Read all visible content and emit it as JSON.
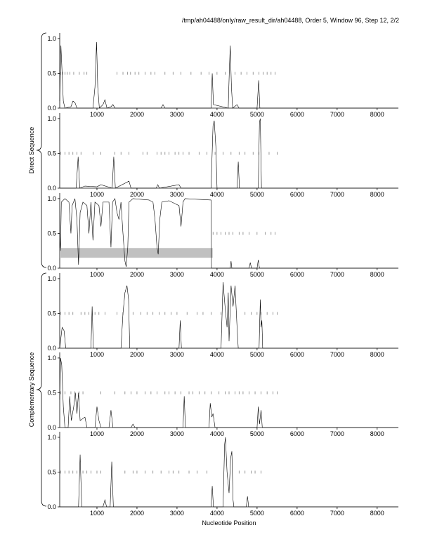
{
  "title": "/tmp/ah04488/only/raw_result_dir/ah04488, Order 5, Window 96, Step 12, 2/2",
  "y_group_labels": [
    "Direct Sequence",
    "Complementary Sequence"
  ],
  "x_label": "Nucleotide Position",
  "chart_data": [
    {
      "type": "line",
      "color": "#000000",
      "xlim": [
        70,
        8530
      ],
      "ylim": [
        0,
        1.08
      ],
      "xticks": [
        1000,
        2000,
        3000,
        4000,
        5000,
        6000,
        7000,
        8000
      ],
      "yticks": [
        {
          "value": 0,
          "label": "0.0"
        },
        {
          "value": 0.5,
          "label": "0.5"
        },
        {
          "value": 1,
          "label": "1.0"
        }
      ],
      "x": [
        70,
        100,
        130,
        160,
        200,
        350,
        400,
        450,
        500,
        900,
        950,
        990,
        1020,
        1060,
        1150,
        1200,
        1250,
        1350,
        1400,
        1450,
        2600,
        2650,
        2700,
        3850,
        3880,
        3910,
        4280,
        4310,
        4330,
        4360,
        4390,
        4500,
        4550,
        5000,
        5040,
        5070,
        8530
      ],
      "values": [
        0.1,
        0.9,
        0.5,
        0.1,
        0,
        0.02,
        0.1,
        0.08,
        0,
        0,
        0.3,
        0.95,
        0.3,
        0,
        0.05,
        0.12,
        0,
        0.02,
        0.05,
        0,
        0,
        0.05,
        0,
        0,
        0.5,
        0.05,
        0,
        0.6,
        0.9,
        0.3,
        0,
        0.05,
        0,
        0,
        0.4,
        0,
        0
      ],
      "marker_level": 0.5,
      "markers": [
        90,
        140,
        200,
        260,
        320,
        420,
        560,
        680,
        750,
        1500,
        1650,
        1760,
        1840,
        1950,
        2050,
        2200,
        2350,
        2450,
        2700,
        2900,
        3100,
        3350,
        3600,
        3800,
        4000,
        4200,
        4450,
        4600,
        4750,
        4900,
        5050,
        5150,
        5250,
        5350,
        5450
      ]
    },
    {
      "type": "line",
      "color": "#000000",
      "xlim": [
        70,
        8530
      ],
      "ylim": [
        0,
        1.08
      ],
      "xticks": [
        1000,
        2000,
        3000,
        4000,
        5000,
        6000,
        7000,
        8000
      ],
      "yticks": [
        {
          "value": 0,
          "label": "0.0"
        },
        {
          "value": 0.5,
          "label": "0.5"
        },
        {
          "value": 1,
          "label": "1.0"
        }
      ],
      "x": [
        70,
        480,
        530,
        570,
        700,
        1000,
        1100,
        1380,
        1420,
        1460,
        1800,
        1850,
        2480,
        2520,
        2560,
        3050,
        3100,
        3850,
        3900,
        3930,
        3970,
        4000,
        4500,
        4530,
        4560,
        5030,
        5060,
        5080,
        5110,
        8530
      ],
      "values": [
        0,
        0,
        0.45,
        0,
        0.03,
        0.02,
        0.05,
        0,
        0.45,
        0,
        0.1,
        0,
        0,
        0.05,
        0,
        0.05,
        0,
        0,
        0.9,
        0.97,
        0.6,
        0,
        0,
        0.38,
        0,
        0,
        0.95,
        1.0,
        0,
        0
      ],
      "marker_level": 0.5,
      "markers": [
        100,
        200,
        300,
        400,
        500,
        600,
        900,
        1100,
        1450,
        1600,
        1800,
        2150,
        2250,
        2500,
        2600,
        2700,
        2800,
        2950,
        3050,
        3150,
        3300,
        3550,
        3750,
        3950,
        4150,
        4350,
        4550,
        4700,
        4900,
        5050,
        5300,
        5500
      ]
    },
    {
      "type": "line",
      "color": "#000000",
      "xlim": [
        70,
        8530
      ],
      "ylim": [
        0,
        1.08
      ],
      "xticks": [
        1000,
        2000,
        3000,
        4000,
        5000,
        6000,
        7000,
        8000
      ],
      "yticks": [
        {
          "value": 0,
          "label": "0.0"
        },
        {
          "value": 0.5,
          "label": "0.5"
        },
        {
          "value": 1,
          "label": "1.0"
        }
      ],
      "x": [
        70,
        90,
        110,
        200,
        300,
        350,
        380,
        450,
        500,
        540,
        580,
        650,
        750,
        800,
        850,
        900,
        950,
        1050,
        1100,
        1150,
        1300,
        1350,
        1390,
        1450,
        1500,
        1550,
        1600,
        1650,
        1700,
        1730,
        1770,
        1800,
        1900,
        2300,
        2400,
        2450,
        2500,
        2530,
        2570,
        2620,
        2800,
        3050,
        3100,
        3150,
        3200,
        3850,
        3860,
        4330,
        4350,
        4370,
        4800,
        4830,
        4860,
        5000,
        5030,
        5060,
        8530
      ],
      "values": [
        0.5,
        0.25,
        0.95,
        1.0,
        0.95,
        0.5,
        0.9,
        1.0,
        0.7,
        0.05,
        0.8,
        0.95,
        0.9,
        0.5,
        0.95,
        0.4,
        0.95,
        0.9,
        0.6,
        0.95,
        0.95,
        0.3,
        0.95,
        1.0,
        0.8,
        0.7,
        0.95,
        0.5,
        0.1,
        0.02,
        0.3,
        0.95,
        1.0,
        0.98,
        0.95,
        0.7,
        0.3,
        0.2,
        0.7,
        0.95,
        0.97,
        0.9,
        0.6,
        0.95,
        1.0,
        0.98,
        0,
        0,
        0.1,
        0,
        0,
        0.08,
        0,
        0,
        0.12,
        0,
        0
      ],
      "band": {
        "x": [
          70,
          3890
        ],
        "y": [
          0.15,
          0.29
        ],
        "color": "#c0c0c0"
      },
      "marker_level": 0.5,
      "markers": [
        3900,
        4000,
        4100,
        4200,
        4300,
        4400,
        4550,
        4650,
        4800,
        5000,
        5200,
        5350,
        5450
      ]
    },
    {
      "type": "line",
      "color": "#000000",
      "xlim": [
        70,
        8530
      ],
      "ylim": [
        0,
        1.08
      ],
      "xticks": [
        1000,
        2000,
        3000,
        4000,
        5000,
        6000,
        7000,
        8000
      ],
      "yticks": [
        {
          "value": 0,
          "label": "0.0"
        },
        {
          "value": 0.5,
          "label": "0.5"
        },
        {
          "value": 1,
          "label": "1.0"
        }
      ],
      "x": [
        70,
        130,
        180,
        220,
        850,
        880,
        910,
        1600,
        1650,
        1700,
        1750,
        1790,
        1820,
        3050,
        3080,
        3110,
        4100,
        4150,
        4200,
        4250,
        4280,
        4300,
        4350,
        4400,
        4450,
        4500,
        4530,
        5050,
        5080,
        5100,
        5120,
        5140,
        8530
      ],
      "values": [
        0,
        0.3,
        0.25,
        0,
        0,
        0.6,
        0,
        0,
        0.5,
        0.8,
        0.9,
        0.7,
        0,
        0,
        0.4,
        0,
        0,
        0.95,
        0.6,
        0.3,
        0.8,
        0.1,
        0.9,
        0.6,
        0.9,
        0.3,
        0,
        0,
        0.7,
        0.3,
        0.4,
        0,
        0
      ],
      "marker_level": 0.5,
      "markers": [
        100,
        200,
        300,
        400,
        600,
        700,
        800,
        950,
        1050,
        1200,
        1500,
        1650,
        1900,
        2100,
        2250,
        2400,
        2550,
        2700,
        2850,
        3000,
        3250,
        3500,
        3650,
        3850,
        4100,
        4700,
        4850,
        5000,
        5100,
        5250,
        5400,
        5500
      ]
    },
    {
      "type": "line",
      "color": "#000000",
      "xlim": [
        70,
        8530
      ],
      "ylim": [
        0,
        1.08
      ],
      "xticks": [
        1000,
        2000,
        3000,
        4000,
        5000,
        6000,
        7000,
        8000
      ],
      "yticks": [
        {
          "value": 0,
          "label": "0.0"
        },
        {
          "value": 0.5,
          "label": "0.5"
        },
        {
          "value": 1,
          "label": "1.0"
        }
      ],
      "x": [
        70,
        90,
        120,
        160,
        200,
        280,
        320,
        360,
        420,
        460,
        500,
        540,
        580,
        700,
        750,
        950,
        1000,
        1050,
        1100,
        1300,
        1350,
        1400,
        1850,
        1900,
        1950,
        3150,
        3180,
        3210,
        3800,
        3830,
        3870,
        3900,
        3950,
        5000,
        5030,
        5060,
        5100,
        5130,
        8530
      ],
      "values": [
        0.4,
        1.0,
        0.9,
        0.3,
        0,
        0,
        0.45,
        0.1,
        0.3,
        0.5,
        0.2,
        0.5,
        0.1,
        0.15,
        0,
        0,
        0.3,
        0.1,
        0,
        0,
        0.25,
        0,
        0,
        0.05,
        0,
        0,
        0.45,
        0,
        0,
        0.35,
        0.15,
        0.2,
        0,
        0,
        0.3,
        0.05,
        0.25,
        0,
        0
      ],
      "marker_level": 0.5,
      "markers": [
        100,
        200,
        350,
        450,
        550,
        650,
        1100,
        1450,
        1700,
        1850,
        2000,
        2200,
        2350,
        2500,
        2700,
        2800,
        2950,
        3100,
        3300,
        3400,
        3550,
        3700,
        3850,
        4050,
        4200,
        4300,
        4450,
        4550,
        4650,
        4800,
        4950,
        5100,
        5250,
        5400,
        5500
      ]
    },
    {
      "type": "line",
      "color": "#000000",
      "xlim": [
        70,
        8530
      ],
      "ylim": [
        0,
        1.08
      ],
      "xticks": [
        1000,
        2000,
        3000,
        4000,
        5000,
        6000,
        7000,
        8000
      ],
      "yticks": [
        {
          "value": 0,
          "label": "0.0"
        },
        {
          "value": 0.5,
          "label": "0.5"
        },
        {
          "value": 1,
          "label": "1.0"
        }
      ],
      "x": [
        70,
        540,
        580,
        620,
        1150,
        1200,
        1240,
        1330,
        1370,
        1410,
        3850,
        3880,
        3910,
        4150,
        4190,
        4210,
        4250,
        4300,
        4340,
        4370,
        4400,
        4420,
        4730,
        4760,
        4790,
        8530
      ],
      "values": [
        0,
        0,
        0.75,
        0,
        0,
        0.1,
        0,
        0,
        0.65,
        0,
        0,
        0.3,
        0,
        0,
        0.9,
        1.0,
        0.5,
        0.2,
        0.7,
        0.8,
        0.1,
        0,
        0,
        0.15,
        0,
        0
      ],
      "marker_level": 0.5,
      "markers": [
        100,
        200,
        300,
        400,
        500,
        650,
        750,
        850,
        1000,
        1100,
        1700,
        1900,
        2000,
        2200,
        2400,
        2600,
        2800,
        2900,
        3050,
        3300,
        3500,
        3750,
        4550,
        4700,
        4850,
        4950,
        5100
      ]
    }
  ]
}
